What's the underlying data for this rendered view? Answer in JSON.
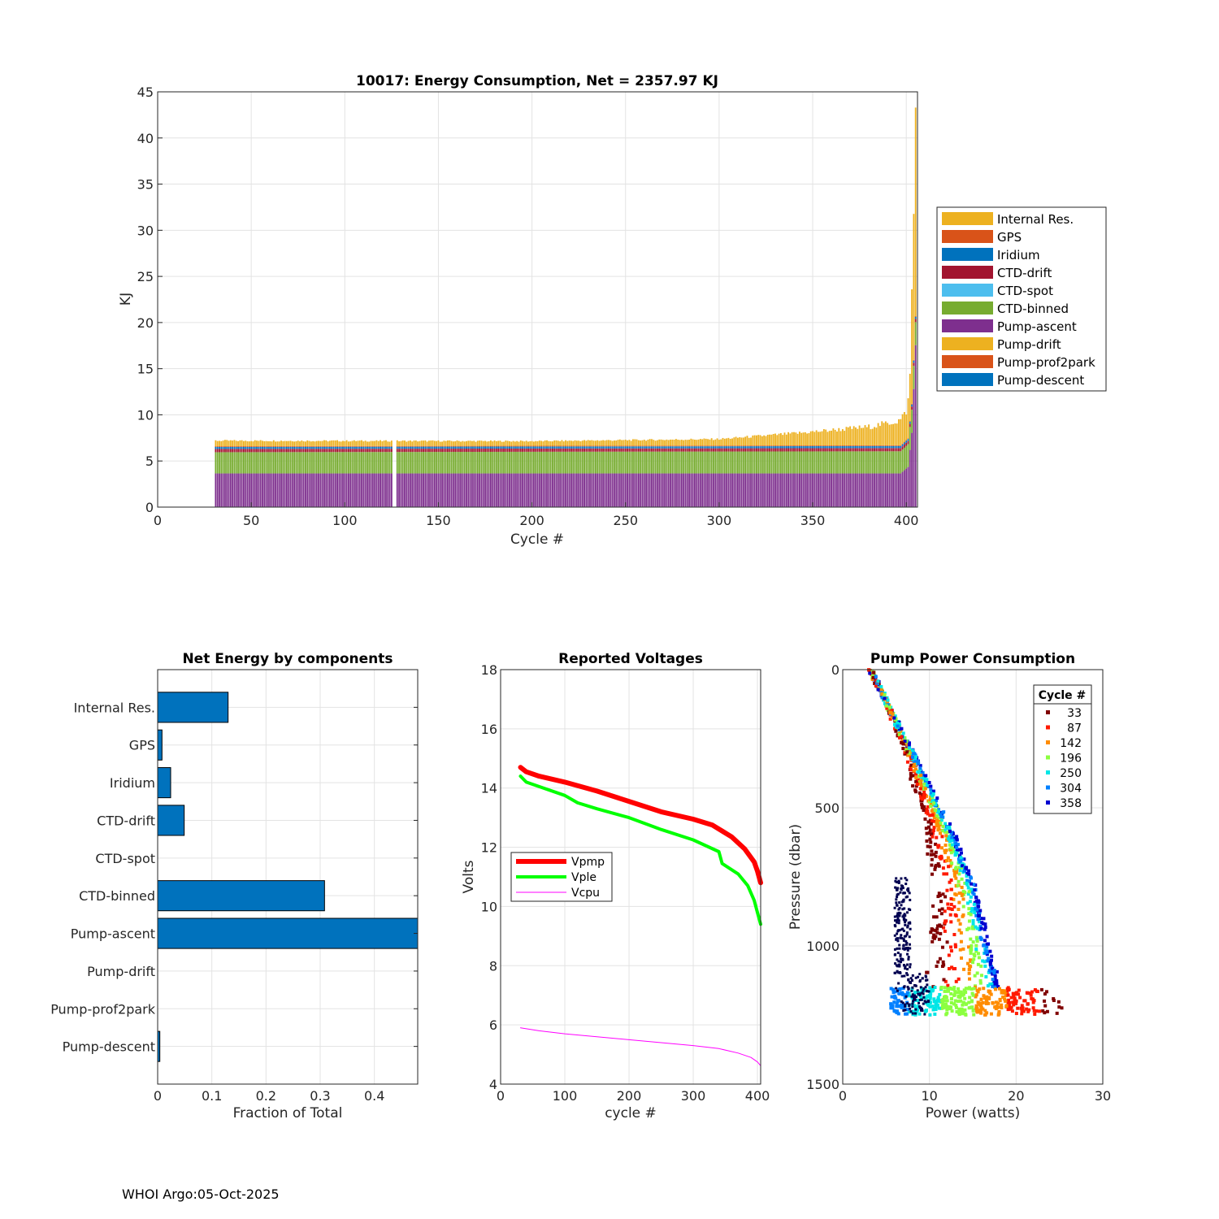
{
  "footer": "WHOI Argo:05-Oct-2025",
  "chart_data": [
    {
      "id": "energy",
      "type": "bar",
      "stacked": true,
      "title": "10017: Energy Consumption,  Net = 2357.97 KJ",
      "xlabel": "Cycle #",
      "ylabel": "KJ",
      "xlim": [
        0,
        406
      ],
      "ylim": [
        0,
        45
      ],
      "xticks": [
        0,
        50,
        100,
        150,
        200,
        250,
        300,
        350,
        400
      ],
      "yticks": [
        0,
        5,
        10,
        15,
        20,
        25,
        30,
        35,
        40,
        45
      ],
      "grid": true,
      "legend_position": "outside-right",
      "legend": [
        {
          "name": "Internal Res.",
          "color": "#EDB120"
        },
        {
          "name": "GPS",
          "color": "#D95319"
        },
        {
          "name": "Iridium",
          "color": "#0072BD"
        },
        {
          "name": "CTD-drift",
          "color": "#A2142F"
        },
        {
          "name": "CTD-spot",
          "color": "#4DBEEE"
        },
        {
          "name": "CTD-binned",
          "color": "#77AC30"
        },
        {
          "name": "Pump-ascent",
          "color": "#7E2F8E"
        },
        {
          "name": "Pump-drift",
          "color": "#EDB120"
        },
        {
          "name": "Pump-prof2park",
          "color": "#D95319"
        },
        {
          "name": "Pump-descent",
          "color": "#0072BD"
        }
      ],
      "first_cycle": 31,
      "last_cycle": 405,
      "gap_cycles": [
        126,
        127
      ],
      "stack_order": [
        "Pump-descent",
        "Pump-ascent",
        "CTD-binned",
        "CTD-drift",
        "Iridium",
        "GPS",
        "Internal Res."
      ],
      "segments_kj": {
        "Pump-descent": 0.05,
        "Pump-ascent": [
          {
            "cycle": 31,
            "value": 3.6
          },
          {
            "cycle": 397,
            "value": 3.6
          },
          {
            "cycle": 401,
            "value": 4.3
          },
          {
            "cycle": 403,
            "value": 8.0
          },
          {
            "cycle": 405,
            "value": 17.5
          }
        ],
        "CTD-binned": [
          {
            "cycle": 31,
            "value": 2.3
          },
          {
            "cycle": 397,
            "value": 2.4
          },
          {
            "cycle": 403,
            "value": 2.5
          }
        ],
        "CTD-drift": 0.35,
        "Iridium": 0.22,
        "GPS": 0.08,
        "Internal Res.": [
          {
            "cycle": 31,
            "value": 0.6
          },
          {
            "cycle": 200,
            "value": 0.5
          },
          {
            "cycle": 300,
            "value": 0.7
          },
          {
            "cycle": 340,
            "value": 1.3
          },
          {
            "cycle": 380,
            "value": 2.0
          },
          {
            "cycle": 395,
            "value": 2.6
          },
          {
            "cycle": 400,
            "value": 3.1
          },
          {
            "cycle": 402,
            "value": 5.0
          },
          {
            "cycle": 403,
            "value": 12.0
          },
          {
            "cycle": 404,
            "value": 16.0
          },
          {
            "cycle": 405,
            "value": 22.0
          }
        ]
      }
    },
    {
      "id": "components",
      "type": "bar",
      "orientation": "horizontal",
      "title": "Net Energy by components",
      "xlabel": "Fraction of Total",
      "xlim": [
        0,
        0.48
      ],
      "xticks": [
        0,
        0.1,
        0.2,
        0.3,
        0.4
      ],
      "xtick_labels": [
        "0",
        "0.1",
        "0.2",
        "0.3",
        "0.4"
      ],
      "grid": true,
      "bar_color": "#0072BD",
      "categories": [
        "Internal Res.",
        "GPS",
        "Iridium",
        "CTD-drift",
        "CTD-spot",
        "CTD-binned",
        "Pump-ascent",
        "Pump-drift",
        "Pump-prof2park",
        "Pump-descent"
      ],
      "values": [
        0.13,
        0.008,
        0.024,
        0.049,
        0,
        0.308,
        0.485,
        0,
        0,
        0.004
      ]
    },
    {
      "id": "voltages",
      "type": "line",
      "title": "Reported Voltages",
      "xlabel": "cycle #",
      "ylabel": "Volts",
      "xlim": [
        0,
        405
      ],
      "ylim": [
        4,
        18
      ],
      "xticks": [
        0,
        100,
        200,
        300,
        400
      ],
      "yticks": [
        4,
        6,
        8,
        10,
        12,
        14,
        16,
        18
      ],
      "grid": true,
      "legend_position": "middle-left",
      "series": [
        {
          "name": "Vpmp",
          "color": "#FF0000",
          "width": 6,
          "points": [
            [
              31,
              14.7
            ],
            [
              40,
              14.55
            ],
            [
              60,
              14.4
            ],
            [
              100,
              14.2
            ],
            [
              150,
              13.9
            ],
            [
              200,
              13.55
            ],
            [
              250,
              13.2
            ],
            [
              300,
              12.95
            ],
            [
              330,
              12.75
            ],
            [
              360,
              12.35
            ],
            [
              380,
              11.95
            ],
            [
              395,
              11.5
            ],
            [
              400,
              11.2
            ],
            [
              405,
              10.8
            ]
          ]
        },
        {
          "name": "Vple",
          "color": "#00FF00",
          "width": 4,
          "points": [
            [
              31,
              14.4
            ],
            [
              40,
              14.2
            ],
            [
              60,
              14.05
            ],
            [
              100,
              13.75
            ],
            [
              120,
              13.5
            ],
            [
              150,
              13.3
            ],
            [
              200,
              13.0
            ],
            [
              250,
              12.6
            ],
            [
              300,
              12.25
            ],
            [
              340,
              11.85
            ],
            [
              345,
              11.45
            ],
            [
              370,
              11.1
            ],
            [
              385,
              10.7
            ],
            [
              395,
              10.2
            ],
            [
              400,
              9.8
            ],
            [
              405,
              9.4
            ]
          ]
        },
        {
          "name": "Vcpu",
          "color": "#FF00FF",
          "width": 1,
          "points": [
            [
              31,
              5.9
            ],
            [
              60,
              5.8
            ],
            [
              100,
              5.7
            ],
            [
              150,
              5.6
            ],
            [
              200,
              5.5
            ],
            [
              250,
              5.4
            ],
            [
              300,
              5.3
            ],
            [
              340,
              5.2
            ],
            [
              370,
              5.05
            ],
            [
              390,
              4.9
            ],
            [
              400,
              4.75
            ],
            [
              405,
              4.62
            ]
          ]
        }
      ]
    },
    {
      "id": "pump",
      "type": "scatter",
      "title": "Pump Power Consumption",
      "xlabel": "Power (watts)",
      "ylabel": "Pressure (dbar)",
      "xlim": [
        0,
        30
      ],
      "ylim": [
        1500,
        0
      ],
      "xticks": [
        0,
        10,
        20,
        30
      ],
      "yticks": [
        0,
        500,
        1000,
        1500
      ],
      "grid": true,
      "legend_title": "Cycle #",
      "legend_position": "top-right",
      "legend": [
        {
          "name": "33",
          "color": "#800000"
        },
        {
          "name": "87",
          "color": "#FF1A00"
        },
        {
          "name": "142",
          "color": "#FF8C00"
        },
        {
          "name": "196",
          "color": "#8CFF40"
        },
        {
          "name": "250",
          "color": "#00E6E6"
        },
        {
          "name": "304",
          "color": "#0080FF"
        },
        {
          "name": "358",
          "color": "#0000D0"
        }
      ],
      "cycle_range": [
        31,
        405
      ],
      "ascent_profile": [
        [
          0,
          3.5
        ],
        [
          200,
          6.7
        ],
        [
          400,
          9.9
        ],
        [
          600,
          13.1
        ],
        [
          800,
          15.6
        ],
        [
          1000,
          17.0
        ],
        [
          1150,
          18.3
        ]
      ],
      "bottom_band": {
        "pressure": [
          1150,
          1250
        ],
        "power": [
          5.5,
          26.5
        ]
      }
    }
  ]
}
